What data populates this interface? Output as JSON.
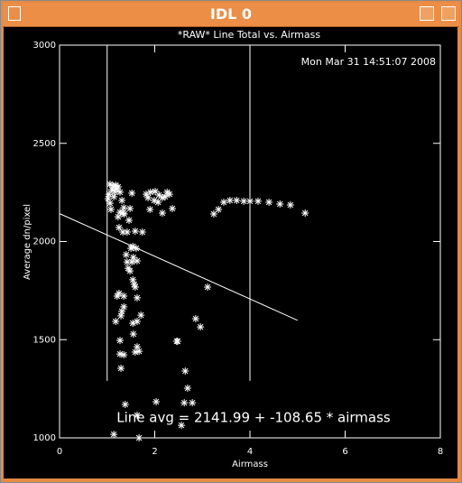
{
  "window": {
    "title": "IDL 0"
  },
  "chart_data": {
    "type": "scatter",
    "title": "*RAW* Line Total vs. Airmass",
    "timestamp": "Mon Mar 31 14:51:07 2008",
    "x_label": "Airmass",
    "y_label": "Average dn/pixel",
    "annotation": "Line avg = 2141.99 + -108.65 * airmass",
    "color": "#ffffff",
    "xlim": [
      0,
      8
    ],
    "xticks": [
      0,
      2,
      4,
      6,
      8
    ],
    "ylim": [
      1000,
      3000
    ],
    "yticks": [
      1000,
      1500,
      2000,
      2500,
      3000
    ],
    "vlines": [
      1,
      4
    ],
    "vline_ylim": [
      1290,
      3000
    ],
    "fit": {
      "intercept": 2141.99,
      "slope": -108.65,
      "xlim": [
        0,
        5
      ]
    },
    "x": [
      1.06,
      1.12,
      1.18,
      1.23,
      1.1,
      1.16,
      1.04,
      1.21,
      1.27,
      1.14,
      1.06,
      1.08,
      1.31,
      1.35,
      1.27,
      1.33,
      1.23,
      1.36,
      1.25,
      1.52,
      1.48,
      1.46,
      1.33,
      1.42,
      1.59,
      1.54,
      1.74,
      1.82,
      1.91,
      2.01,
      2.09,
      1.99,
      1.86,
      2.16,
      2.22,
      2.26,
      2.31,
      2.07,
      1.9,
      2.16,
      2.37,
      1.02,
      1.5,
      1.4,
      1.42,
      1.52,
      1.44,
      1.55,
      1.61,
      1.63,
      1.48,
      1.54,
      1.57,
      1.59,
      1.63,
      1.25,
      1.21,
      1.35,
      1.35,
      1.31,
      1.18,
      1.29,
      1.71,
      1.63,
      1.54,
      1.27,
      1.55,
      1.63,
      1.27,
      1.35,
      1.29,
      1.59,
      1.67,
      2.48,
      2.86,
      2.96,
      3.24,
      3.34,
      3.45,
      3.58,
      3.72,
      3.87,
      4.0,
      4.17,
      4.4,
      4.63,
      4.85,
      5.16,
      3.11,
      1.38,
      1.14,
      1.63,
      1.67,
      2.03,
      2.56,
      2.62,
      2.64,
      2.69,
      2.79,
      2.46
    ],
    "values": [
      2292,
      2283,
      2287,
      2278,
      2264,
      2255,
      2241,
      2269,
      2251,
      2228,
      2195,
      2163,
      2209,
      2172,
      2149,
      2145,
      2126,
      2140,
      2071,
      2246,
      2168,
      2108,
      2048,
      2048,
      2053,
      1975,
      2048,
      2241,
      2251,
      2255,
      2237,
      2209,
      2223,
      2223,
      2228,
      2251,
      2241,
      2200,
      2163,
      2145,
      2168,
      2218,
      1965,
      1933,
      1896,
      1896,
      1864,
      1919,
      1965,
      1901,
      1850,
      1805,
      1782,
      1768,
      1713,
      1736,
      1722,
      1722,
      1667,
      1644,
      1593,
      1621,
      1625,
      1593,
      1584,
      1496,
      1529,
      1464,
      1427,
      1423,
      1354,
      1437,
      1441,
      1492,
      1607,
      1565,
      2140,
      2163,
      2200,
      2209,
      2209,
      2205,
      2205,
      2205,
      2200,
      2191,
      2186,
      2145,
      1768,
      1170,
      1018,
      1115,
      1000,
      1184,
      1064,
      1179,
      1340,
      1253,
      1179,
      1492
    ]
  }
}
